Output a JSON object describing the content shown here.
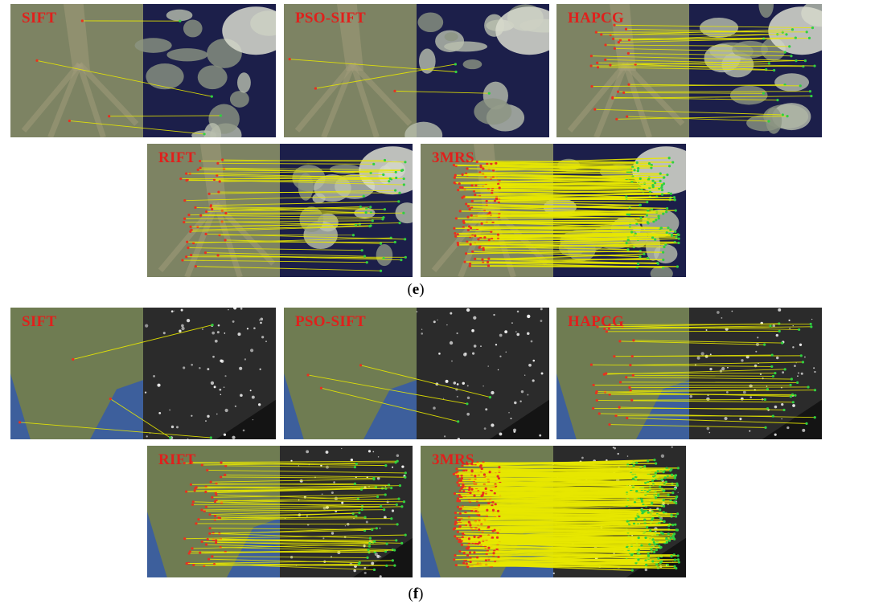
{
  "figure": {
    "group_e": {
      "caption_open": "(",
      "caption_letter": "e",
      "caption_close": ")",
      "panels": [
        {
          "label": "SIFT",
          "scene": "delta",
          "matches": 4
        },
        {
          "label": "PSO-SIFT",
          "scene": "delta",
          "matches": 3
        },
        {
          "label": "HAPCG",
          "scene": "delta",
          "matches": 28
        },
        {
          "label": "RIFT",
          "scene": "delta",
          "matches": 45
        },
        {
          "label": "3MRS",
          "scene": "delta",
          "matches": 120
        }
      ]
    },
    "group_f": {
      "caption_open": "(",
      "caption_letter": "f",
      "caption_close": ")",
      "panels": [
        {
          "label": "SIFT",
          "scene": "night",
          "matches": 3
        },
        {
          "label": "PSO-SIFT",
          "scene": "night",
          "matches": 3
        },
        {
          "label": "HAPCG",
          "scene": "night",
          "matches": 32
        },
        {
          "label": "RIFT",
          "scene": "night",
          "matches": 60
        },
        {
          "label": "3MRS",
          "scene": "night",
          "matches": 260
        }
      ]
    },
    "colors": {
      "label": "#e0201c",
      "match_line": "#e8e800",
      "keypoint_left": "#e83020",
      "keypoint_right": "#30d040",
      "delta_land": "#7d8363",
      "delta_water": "#1c1f4a",
      "night_land": "#6f7c52",
      "night_sea": "#3d5f9c",
      "night_dark": "#141414"
    }
  }
}
